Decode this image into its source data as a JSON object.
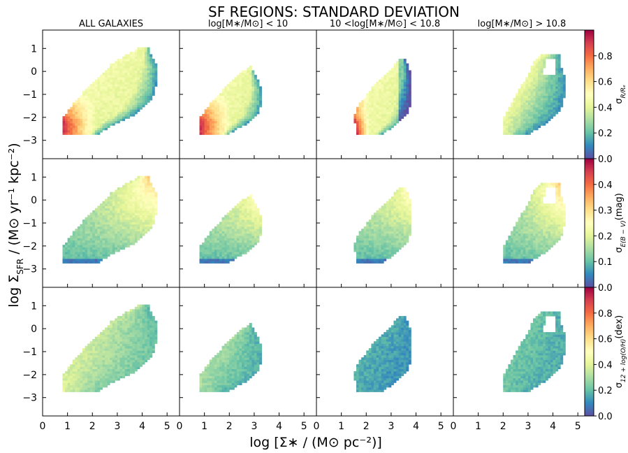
{
  "title": "SF REGIONS: STANDARD DEVIATION",
  "column_titles": [
    "ALL GALAXIES",
    "log[M∗/M⊙] < 10",
    "10 <log[M∗/M⊙] < 10.8",
    "log[M∗/M⊙] > 10.8"
  ],
  "xlabel": "log [Σ∗ / (M⊙ pc⁻²)]",
  "ylabel_main": "log Σ",
  "ylabel_sub": "SFR",
  "ylabel_tail": " / (M⊙ yr⁻¹ kpc⁻²)",
  "chart_data": {
    "type": "heatmap",
    "title": "SF REGIONS: STANDARD DEVIATION",
    "xlabel": "log [Σ∗ / (M⊙ pc⁻²)]",
    "ylabel": "log ΣSFR / (M⊙ yr⁻¹ kpc⁻²)",
    "xlim": [
      0,
      5.5
    ],
    "ylim": [
      -3.8,
      1.8
    ],
    "x_ticks": [
      0,
      1,
      2,
      3,
      4,
      5
    ],
    "x_tick_labels": [
      "0",
      "1",
      "2",
      "3",
      "4",
      "5"
    ],
    "y_ticks": [
      1,
      0,
      -1,
      -2,
      -3
    ],
    "y_tick_labels": [
      "1",
      "0",
      "−1",
      "−2",
      "−3"
    ],
    "colormap": "Spectral_r",
    "colormap_stops": [
      "#5e4fa2",
      "#3288bd",
      "#66c2a5",
      "#abdda4",
      "#e6f598",
      "#ffffbf",
      "#fee08b",
      "#fdae61",
      "#f46d43",
      "#d53e4f",
      "#9e0142"
    ],
    "columns": [
      "ALL GALAXIES",
      "log[M∗/M⊙] < 10",
      "10 <log[M∗/M⊙] < 10.8",
      "log[M∗/M⊙] > 10.8"
    ],
    "rows": [
      {
        "quantity": "sigma_R/Re",
        "colorbar_label_main": "σ",
        "colorbar_label_sub": "R/Rₑ",
        "colorbar_label_tail": "",
        "vmin": 0.0,
        "vmax": 1.0,
        "colorbar_ticks": [
          0.0,
          0.2,
          0.4,
          0.6,
          0.8
        ],
        "colorbar_tick_labels": [
          "0.0",
          "0.2",
          "0.4",
          "0.6",
          "0.8"
        ]
      },
      {
        "quantity": "sigma_E(B-V)",
        "colorbar_label_main": "σ",
        "colorbar_label_sub": "E(B − V)",
        "colorbar_label_tail": "(mag)",
        "vmin": 0.0,
        "vmax": 0.5,
        "colorbar_ticks": [
          0.0,
          0.1,
          0.2,
          0.3,
          0.4
        ],
        "colorbar_tick_labels": [
          "0.0",
          "0.1",
          "0.2",
          "0.3",
          "0.4"
        ]
      },
      {
        "quantity": "sigma_12+log(O/H)",
        "colorbar_label_main": "σ",
        "colorbar_label_sub": "12 + log(O/H)",
        "colorbar_label_tail": "(dex)",
        "vmin": 0.0,
        "vmax": 1.0,
        "colorbar_ticks": [
          0.0,
          0.2,
          0.4,
          0.6,
          0.8
        ],
        "colorbar_tick_labels": [
          "0.0",
          "0.2",
          "0.4",
          "0.6",
          "0.8"
        ]
      }
    ]
  }
}
